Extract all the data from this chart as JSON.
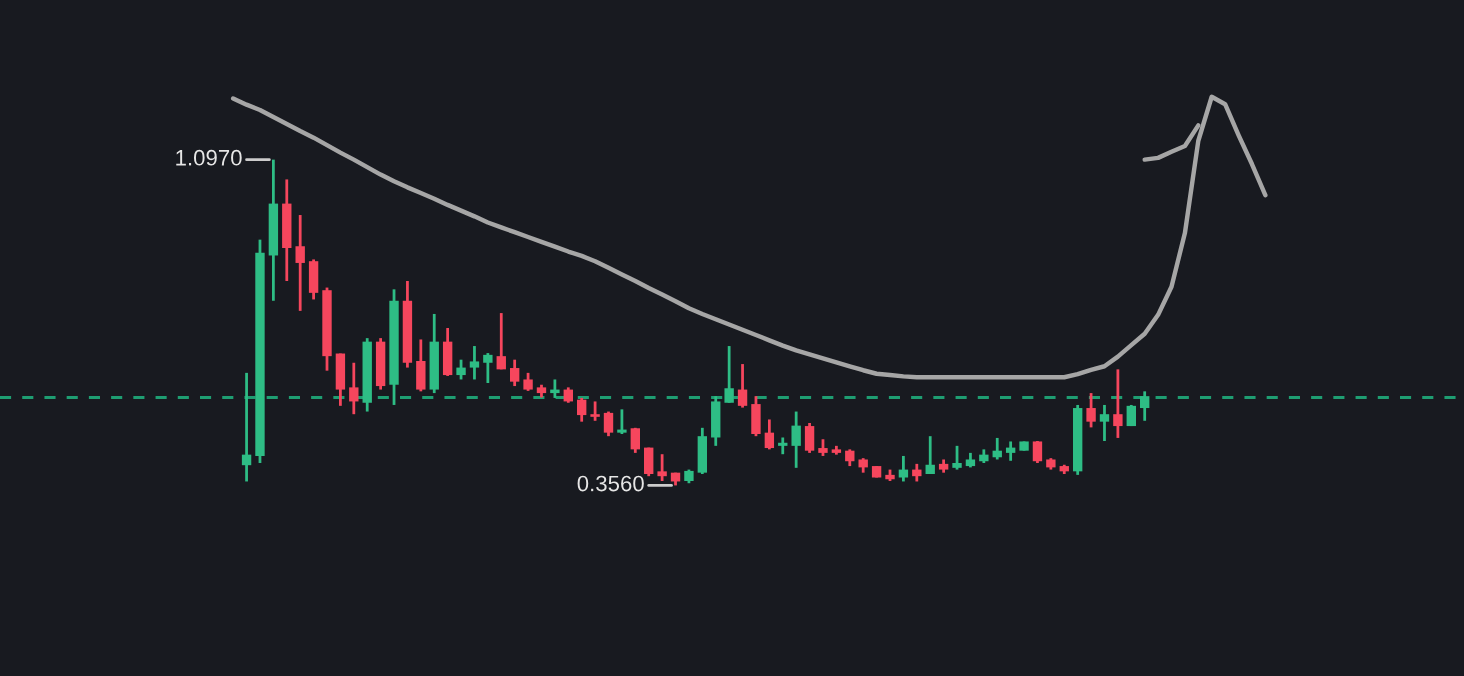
{
  "chart_data": {
    "type": "candlestick",
    "categories": [
      null,
      null,
      null,
      null,
      null,
      null,
      null,
      null,
      null,
      null,
      null,
      null,
      null,
      null,
      null,
      null,
      null,
      null,
      null,
      null,
      null,
      null,
      null,
      null,
      null,
      null,
      null,
      null,
      null,
      null,
      null,
      null,
      null,
      null,
      null,
      null,
      null,
      null,
      null,
      null,
      null,
      null,
      null,
      null,
      null,
      null,
      null,
      null,
      null,
      null,
      null,
      null,
      null,
      null,
      null,
      null,
      null,
      null,
      null,
      null,
      null,
      null,
      null,
      null,
      null,
      null,
      null,
      null,
      null,
      null,
      null,
      null,
      null,
      null,
      null,
      null,
      null,
      null
    ],
    "ohlc": [
      null,
      [
        0.402,
        0.612,
        0.365,
        0.426
      ],
      [
        0.423,
        0.915,
        0.407,
        0.885
      ],
      [
        0.879,
        1.097,
        0.776,
        0.997
      ],
      [
        0.997,
        1.052,
        0.821,
        0.896
      ],
      [
        0.9,
        0.971,
        0.753,
        0.862
      ],
      [
        0.866,
        0.87,
        0.779,
        0.794
      ],
      [
        0.8,
        0.806,
        0.617,
        0.65
      ],
      [
        0.656,
        0.656,
        0.537,
        0.574
      ],
      [
        0.579,
        0.635,
        0.518,
        0.547
      ],
      [
        0.544,
        0.691,
        0.524,
        0.683
      ],
      [
        0.683,
        0.691,
        0.574,
        0.582
      ],
      [
        0.585,
        0.802,
        0.539,
        0.776
      ],
      [
        0.776,
        0.821,
        0.624,
        0.635
      ],
      [
        0.639,
        0.688,
        0.57,
        0.574
      ],
      [
        0.574,
        0.746,
        0.566,
        0.683
      ],
      [
        0.683,
        0.714,
        0.605,
        0.607
      ],
      [
        0.607,
        0.642,
        0.597,
        0.624
      ],
      [
        0.624,
        0.673,
        0.597,
        0.638
      ],
      [
        0.635,
        0.657,
        0.589,
        0.653
      ],
      [
        0.65,
        0.748,
        0.62,
        0.62
      ],
      [
        0.623,
        0.642,
        0.582,
        0.592
      ],
      [
        0.597,
        0.612,
        0.571,
        0.574
      ],
      [
        0.579,
        0.585,
        0.556,
        0.566
      ],
      [
        0.566,
        0.597,
        0.555,
        0.574
      ],
      [
        0.574,
        0.579,
        0.544,
        0.547
      ],
      [
        0.551,
        0.555,
        0.501,
        0.516
      ],
      [
        0.518,
        0.547,
        0.503,
        0.512
      ],
      [
        0.521,
        0.524,
        0.468,
        0.476
      ],
      [
        0.476,
        0.529,
        0.473,
        0.483
      ],
      [
        0.486,
        0.487,
        0.43,
        0.438
      ],
      [
        0.442,
        0.442,
        0.377,
        0.382
      ],
      [
        0.388,
        0.427,
        0.366,
        0.377
      ],
      [
        0.385,
        0.385,
        0.356,
        0.365
      ],
      [
        0.366,
        0.392,
        0.361,
        0.389
      ],
      [
        0.385,
        0.487,
        0.382,
        0.468
      ],
      [
        0.465,
        0.559,
        0.446,
        0.547
      ],
      [
        0.544,
        0.673,
        0.544,
        0.577
      ],
      [
        0.574,
        0.632,
        0.533,
        0.537
      ],
      [
        0.541,
        0.559,
        0.468,
        0.473
      ],
      [
        0.476,
        0.506,
        0.438,
        0.441
      ],
      [
        0.446,
        0.465,
        0.427,
        0.453
      ],
      [
        0.446,
        0.524,
        0.396,
        0.492
      ],
      [
        0.491,
        0.498,
        0.43,
        0.435
      ],
      [
        0.441,
        0.461,
        0.423,
        0.43
      ],
      [
        0.438,
        0.446,
        0.426,
        0.43
      ],
      [
        0.435,
        0.438,
        0.4,
        0.411
      ],
      [
        0.415,
        0.418,
        0.385,
        0.397
      ],
      [
        0.4,
        0.4,
        0.374,
        0.374
      ],
      [
        0.38,
        0.392,
        0.366,
        0.37
      ],
      [
        0.374,
        0.423,
        0.365,
        0.392
      ],
      [
        0.392,
        0.405,
        0.365,
        0.377
      ],
      [
        0.382,
        0.468,
        0.382,
        0.403
      ],
      [
        0.405,
        0.415,
        0.385,
        0.392
      ],
      [
        0.396,
        0.446,
        0.392,
        0.407
      ],
      [
        0.4,
        0.43,
        0.397,
        0.415
      ],
      [
        0.411,
        0.438,
        0.407,
        0.426
      ],
      [
        0.42,
        0.464,
        0.415,
        0.435
      ],
      [
        0.43,
        0.456,
        0.412,
        0.442
      ],
      [
        0.435,
        0.456,
        0.435,
        0.456
      ],
      [
        0.456,
        0.457,
        0.407,
        0.411
      ],
      [
        0.415,
        0.418,
        0.392,
        0.397
      ],
      [
        0.4,
        0.403,
        0.382,
        0.388
      ],
      [
        0.388,
        0.539,
        0.38,
        0.532
      ],
      [
        0.532,
        0.566,
        0.488,
        0.501
      ],
      [
        0.501,
        0.539,
        0.457,
        0.518
      ],
      [
        0.518,
        0.62,
        0.464,
        0.491
      ],
      [
        0.491,
        0.539,
        0.491,
        0.537
      ],
      [
        0.532,
        0.57,
        0.503,
        0.559
      ],
      null,
      null,
      null,
      null,
      null,
      null,
      null,
      null,
      null
    ],
    "colors": [
      null,
      "#2ebd85",
      "#2ebd85",
      "#2ebd85",
      "#f6465d",
      "#f6465d",
      "#f6465d",
      "#f6465d",
      "#f6465d",
      "#f6465d",
      "#2ebd85",
      "#f6465d",
      "#2ebd85",
      "#f6465d",
      "#f6465d",
      "#2ebd85",
      "#f6465d",
      "#2ebd85",
      "#2ebd85",
      "#2ebd85",
      "#f6465d",
      "#f6465d",
      "#f6465d",
      "#f6465d",
      "#2ebd85",
      "#f6465d",
      "#f6465d",
      "#f6465d",
      "#f6465d",
      "#2ebd85",
      "#f6465d",
      "#f6465d",
      "#f6465d",
      "#f6465d",
      "#2ebd85",
      "#2ebd85",
      "#2ebd85",
      "#2ebd85",
      "#f6465d",
      "#f6465d",
      "#f6465d",
      "#2ebd85",
      "#2ebd85",
      "#f6465d",
      "#f6465d",
      "#f6465d",
      "#f6465d",
      "#f6465d",
      "#f6465d",
      "#f6465d",
      "#2ebd85",
      "#f6465d",
      "#2ebd85",
      "#f6465d",
      "#2ebd85",
      "#2ebd85",
      "#2ebd85",
      "#2ebd85",
      "#2ebd85",
      "#2ebd85",
      "#f6465d",
      "#f6465d",
      "#f6465d",
      "#2ebd85",
      "#f6465d",
      "#2ebd85",
      "#f6465d",
      "#2ebd85",
      "#2ebd85",
      null,
      null,
      null,
      null,
      null,
      null,
      null,
      null,
      null
    ],
    "series": [
      {
        "type": "line",
        "color": "#a6a6a6",
        "values": [
          1.236,
          1.222,
          1.21,
          1.194,
          1.178,
          1.162,
          1.147,
          1.13,
          1.113,
          1.097,
          1.08,
          1.063,
          1.048,
          1.034,
          1.021,
          1.008,
          0.994,
          0.981,
          0.968,
          0.954,
          0.943,
          0.932,
          0.921,
          0.91,
          0.899,
          0.888,
          0.878,
          0.866,
          0.851,
          0.836,
          0.821,
          0.805,
          0.79,
          0.775,
          0.759,
          0.746,
          0.734,
          0.722,
          0.71,
          0.698,
          0.686,
          0.674,
          0.663,
          0.654,
          0.645,
          0.636,
          0.627,
          0.618,
          0.61,
          0.607,
          0.604,
          0.602,
          0.602,
          0.602,
          0.602,
          0.602,
          0.602,
          0.602,
          0.602,
          0.602,
          0.602,
          0.602,
          0.602,
          0.609,
          0.619,
          0.627,
          0.649,
          0.675,
          0.701,
          0.744,
          0.808,
          0.93,
          1.14,
          1.24,
          1.223,
          1.153,
          1.087,
          1.016
        ]
      },
      {
        "type": "line",
        "color": "#a6a6a6",
        "values": [
          null,
          null,
          null,
          null,
          null,
          null,
          null,
          null,
          null,
          null,
          null,
          null,
          null,
          null,
          null,
          null,
          null,
          null,
          null,
          null,
          null,
          null,
          null,
          null,
          null,
          null,
          null,
          null,
          null,
          null,
          null,
          null,
          null,
          null,
          null,
          null,
          null,
          null,
          null,
          null,
          null,
          null,
          null,
          null,
          null,
          null,
          null,
          null,
          null,
          null,
          null,
          null,
          null,
          null,
          null,
          null,
          null,
          null,
          null,
          null,
          null,
          null,
          null,
          null,
          null,
          null,
          null,
          null,
          1.097,
          1.101,
          1.115,
          1.128,
          1.175,
          null,
          null,
          null,
          null,
          null
        ]
      }
    ],
    "annotations": [
      "1.0970",
      "0.3560"
    ],
    "ref_lines": [
      {
        "axis": "y",
        "value": 0.556,
        "color": "#1e9e72",
        "line_style": "dashed"
      }
    ]
  }
}
